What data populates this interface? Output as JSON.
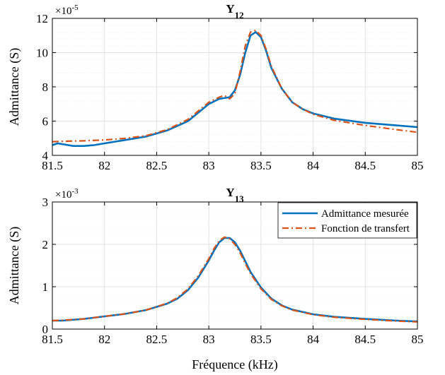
{
  "figure": {
    "xlabel": "Fréquence (kHz)",
    "ylabel": "Admittance (S)"
  },
  "colors": {
    "measured": "#0072BD",
    "transfer": "#D95319",
    "grid": "#e3e3e3",
    "axis": "#000000"
  },
  "chart_data": [
    {
      "type": "line",
      "title": "Y",
      "title_subscript": "12",
      "xlabel": "",
      "ylabel": "Admittance (S)",
      "exponent_label": "×10",
      "exponent_power": "-5",
      "xlim": [
        81.5,
        85
      ],
      "ylim": [
        4,
        12
      ],
      "xticks": [
        81.5,
        82,
        82.5,
        83,
        83.5,
        84,
        84.5,
        85
      ],
      "xtick_labels": [
        "81.5",
        "82",
        "82.5",
        "83",
        "83.5",
        "84",
        "84.5",
        "85"
      ],
      "yticks": [
        4,
        6,
        8,
        10,
        12
      ],
      "ytick_labels": [
        "4",
        "6",
        "8",
        "10",
        "12"
      ],
      "grid": true,
      "series": [
        {
          "name": "Admittance mesurée",
          "style": "solid",
          "x": [
            81.5,
            81.55,
            81.6,
            81.7,
            81.8,
            81.9,
            82.0,
            82.2,
            82.4,
            82.6,
            82.8,
            82.9,
            83.0,
            83.1,
            83.2,
            83.25,
            83.3,
            83.35,
            83.4,
            83.45,
            83.5,
            83.55,
            83.6,
            83.7,
            83.8,
            83.9,
            84.0,
            84.2,
            84.5,
            84.8,
            85.0
          ],
          "y": [
            4.6,
            4.7,
            4.65,
            4.55,
            4.55,
            4.6,
            4.7,
            4.9,
            5.1,
            5.45,
            6.0,
            6.5,
            7.0,
            7.3,
            7.4,
            7.8,
            8.7,
            10.0,
            11.0,
            11.2,
            10.9,
            10.1,
            9.1,
            7.9,
            7.1,
            6.7,
            6.45,
            6.15,
            5.9,
            5.75,
            5.65
          ]
        },
        {
          "name": "Fonction de transfert",
          "style": "dashdot",
          "x": [
            81.5,
            81.6,
            81.8,
            82.0,
            82.2,
            82.4,
            82.6,
            82.8,
            82.9,
            83.0,
            83.1,
            83.15,
            83.2,
            83.25,
            83.3,
            83.35,
            83.4,
            83.45,
            83.5,
            83.55,
            83.6,
            83.7,
            83.8,
            83.9,
            84.0,
            84.2,
            84.5,
            84.8,
            85.0
          ],
          "y": [
            4.8,
            4.82,
            4.85,
            4.9,
            5.0,
            5.15,
            5.5,
            6.1,
            6.6,
            7.1,
            7.4,
            7.5,
            7.3,
            7.6,
            8.9,
            10.4,
            11.2,
            11.3,
            11.0,
            10.2,
            9.2,
            7.9,
            7.1,
            6.7,
            6.4,
            6.05,
            5.75,
            5.5,
            5.35
          ]
        }
      ]
    },
    {
      "type": "line",
      "title": "Y",
      "title_subscript": "13",
      "xlabel": "Fréquence (kHz)",
      "ylabel": "Admittance (S)",
      "exponent_label": "×10",
      "exponent_power": "-3",
      "xlim": [
        81.5,
        85
      ],
      "ylim": [
        0,
        3
      ],
      "xticks": [
        81.5,
        82,
        82.5,
        83,
        83.5,
        84,
        84.5,
        85
      ],
      "xtick_labels": [
        "81.5",
        "82",
        "82.5",
        "83",
        "83.5",
        "84",
        "84.5",
        "85"
      ],
      "yticks": [
        0,
        1,
        2,
        3
      ],
      "ytick_labels": [
        "0",
        "1",
        "2",
        "3"
      ],
      "grid": true,
      "legend_position": "top-right",
      "series": [
        {
          "name": "Admittance mesurée",
          "style": "solid",
          "x": [
            81.5,
            81.6,
            81.8,
            82.0,
            82.2,
            82.4,
            82.6,
            82.7,
            82.8,
            82.9,
            83.0,
            83.05,
            83.1,
            83.15,
            83.2,
            83.25,
            83.3,
            83.35,
            83.4,
            83.5,
            83.6,
            83.7,
            83.8,
            84.0,
            84.2,
            84.5,
            84.8,
            85.0
          ],
          "y": [
            0.2,
            0.2,
            0.24,
            0.3,
            0.36,
            0.45,
            0.6,
            0.72,
            0.92,
            1.22,
            1.62,
            1.85,
            2.05,
            2.15,
            2.15,
            2.05,
            1.85,
            1.6,
            1.35,
            0.98,
            0.72,
            0.56,
            0.46,
            0.35,
            0.29,
            0.24,
            0.2,
            0.18
          ]
        },
        {
          "name": "Fonction de transfert",
          "style": "dashdot",
          "x": [
            81.5,
            81.6,
            81.8,
            82.0,
            82.2,
            82.4,
            82.6,
            82.7,
            82.8,
            82.9,
            83.0,
            83.05,
            83.1,
            83.15,
            83.2,
            83.25,
            83.3,
            83.35,
            83.4,
            83.5,
            83.6,
            83.7,
            83.8,
            84.0,
            84.2,
            84.5,
            84.8,
            85.0
          ],
          "y": [
            0.2,
            0.21,
            0.24,
            0.3,
            0.36,
            0.45,
            0.61,
            0.74,
            0.95,
            1.26,
            1.66,
            1.9,
            2.09,
            2.17,
            2.13,
            2.0,
            1.8,
            1.55,
            1.31,
            0.95,
            0.7,
            0.55,
            0.45,
            0.34,
            0.28,
            0.23,
            0.19,
            0.17
          ]
        }
      ]
    }
  ]
}
